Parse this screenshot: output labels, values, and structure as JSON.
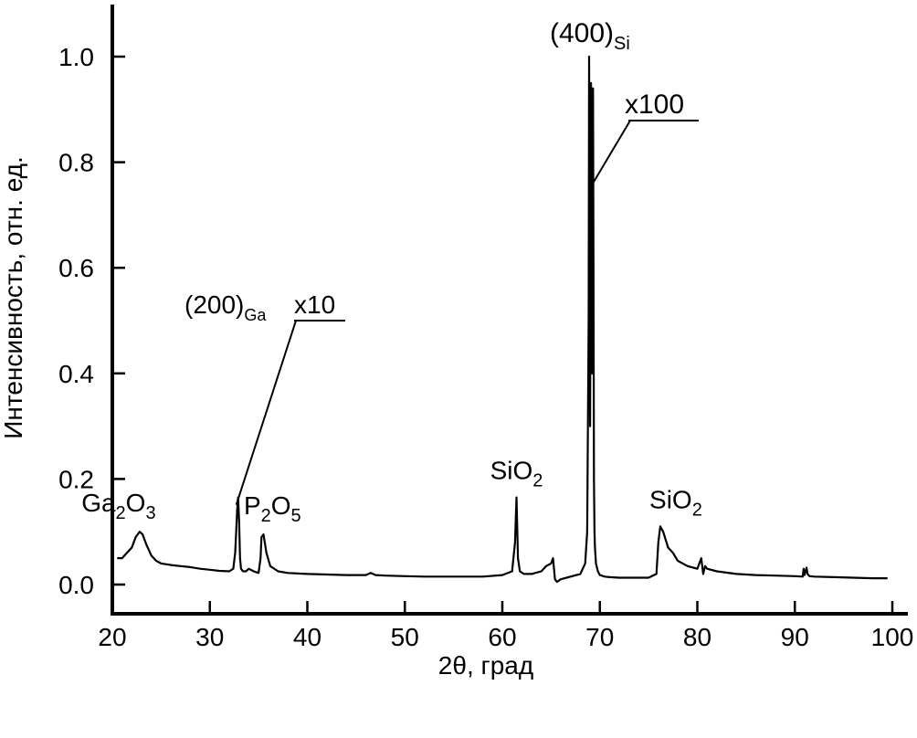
{
  "chart_data": {
    "type": "line",
    "title": "",
    "xlabel": "2θ, град",
    "ylabel": "Интенсивность, отн. ед.",
    "xlim": [
      20,
      100
    ],
    "ylim": [
      -0.05,
      1.1
    ],
    "x_ticks": [
      20,
      30,
      40,
      50,
      60,
      70,
      80,
      90,
      100
    ],
    "x_tick_labels": [
      "20",
      "30",
      "40",
      "50",
      "60",
      "70",
      "80",
      "90",
      "100"
    ],
    "y_ticks": [
      0.0,
      0.2,
      0.4,
      0.6,
      0.8,
      1.0
    ],
    "y_tick_labels": [
      "0.0",
      "0.2",
      "0.4",
      "0.6",
      "0.8",
      "1.0"
    ],
    "grid": false,
    "legend": "none",
    "series": [
      {
        "x": [
          20.5,
          21.0,
          21.5,
          22.0,
          22.4,
          22.8,
          23.1,
          23.5,
          24.0,
          24.5,
          25.0,
          26.0,
          27.0,
          28.0,
          29.0,
          30.0,
          31.0,
          32.0,
          32.4,
          32.6,
          32.7,
          32.8,
          32.9,
          33.0,
          33.1,
          33.2,
          33.4,
          33.7,
          34.0,
          34.5,
          35.0,
          35.2,
          35.3,
          35.5,
          35.8,
          36.2,
          37.0,
          38.0,
          40.0,
          42.0,
          44.0,
          46.0,
          46.5,
          47.0,
          48.0,
          50.0,
          52.0,
          54.0,
          56.0,
          58.0,
          60.0,
          61.0,
          61.3,
          61.45,
          61.6,
          61.8,
          62.2,
          63.0,
          64.0,
          64.5,
          65.0,
          65.2,
          65.4,
          65.6,
          66.0,
          67.0,
          68.0,
          68.5,
          68.7,
          68.85,
          68.9,
          68.95,
          69.0,
          69.05,
          69.1,
          69.15,
          69.2,
          69.25,
          69.3,
          69.35,
          69.4,
          69.45,
          69.5,
          69.6,
          69.8,
          70.0,
          70.5,
          71.0,
          72.0,
          73.0,
          74.0,
          75.0,
          75.8,
          76.0,
          76.2,
          76.5,
          77.0,
          77.5,
          78.0,
          79.0,
          80.0,
          80.4,
          80.6,
          80.8,
          81.0,
          82.0,
          84.0,
          86.0,
          88.0,
          90.0,
          90.8,
          90.9,
          91.0,
          91.2,
          91.3,
          91.5,
          92.0,
          94.0,
          96.0,
          98.0,
          99.5
        ],
        "values": [
          0.05,
          0.05,
          0.06,
          0.07,
          0.09,
          0.1,
          0.095,
          0.075,
          0.055,
          0.045,
          0.04,
          0.037,
          0.035,
          0.033,
          0.03,
          0.028,
          0.026,
          0.025,
          0.03,
          0.06,
          0.1,
          0.14,
          0.165,
          0.12,
          0.05,
          0.03,
          0.025,
          0.025,
          0.03,
          0.025,
          0.022,
          0.05,
          0.09,
          0.095,
          0.06,
          0.035,
          0.025,
          0.022,
          0.02,
          0.019,
          0.018,
          0.018,
          0.022,
          0.018,
          0.017,
          0.016,
          0.015,
          0.015,
          0.015,
          0.015,
          0.018,
          0.025,
          0.08,
          0.165,
          0.05,
          0.025,
          0.02,
          0.02,
          0.025,
          0.035,
          0.04,
          0.05,
          0.01,
          0.005,
          0.01,
          0.015,
          0.02,
          0.04,
          0.1,
          0.5,
          1.0,
          0.7,
          0.3,
          0.6,
          0.95,
          0.85,
          0.4,
          0.8,
          0.94,
          0.6,
          0.2,
          0.1,
          0.07,
          0.04,
          0.025,
          0.018,
          0.015,
          0.014,
          0.013,
          0.013,
          0.013,
          0.013,
          0.02,
          0.08,
          0.11,
          0.1,
          0.07,
          0.06,
          0.045,
          0.035,
          0.03,
          0.05,
          0.02,
          0.035,
          0.03,
          0.025,
          0.02,
          0.018,
          0.017,
          0.016,
          0.015,
          0.03,
          0.018,
          0.032,
          0.02,
          0.016,
          0.015,
          0.014,
          0.013,
          0.012,
          0.012
        ]
      }
    ],
    "annotations": [
      {
        "base": "Ga",
        "sub": "2",
        "rest": "O",
        "sub2": "3",
        "x": 22.8,
        "y": 0.1
      },
      {
        "base": "P",
        "sub": "2",
        "rest": "O",
        "sub2": "5",
        "x": 35.3,
        "y": 0.095
      },
      {
        "base": "SiO",
        "sub": "2",
        "rest": "",
        "sub2": "",
        "x": 61.45,
        "y": 0.165
      },
      {
        "base": "SiO",
        "sub": "2",
        "rest": "",
        "sub2": "",
        "x": 76.2,
        "y": 0.11
      }
    ],
    "peak_labels": [
      {
        "text": "(200)",
        "sub": "Ga",
        "multiplier": "x10",
        "x": 32.9,
        "y": 0.165
      },
      {
        "text": "(400)",
        "sub": "Si",
        "multiplier": "x100",
        "x": 69.0,
        "y": 1.0
      }
    ]
  }
}
